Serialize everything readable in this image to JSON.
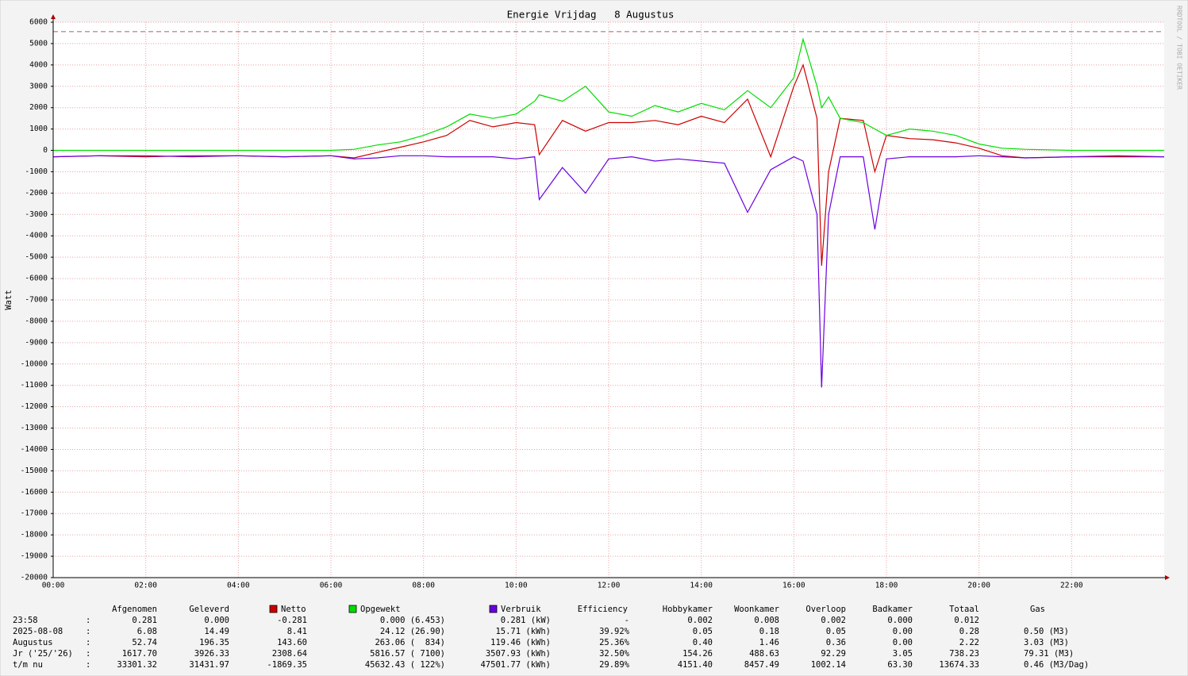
{
  "chart_data": {
    "type": "line",
    "title": "Energie Vrijdag   8 Augustus",
    "ylabel": "Watt",
    "watermark": "RRDTOOL / TOBI OETIKER",
    "x": [
      0,
      1,
      2,
      3,
      4,
      5,
      6,
      6.5,
      7,
      7.5,
      8,
      8.5,
      9,
      9.5,
      10,
      10.4,
      10.5,
      11,
      11.5,
      12,
      12.5,
      13,
      13.5,
      14,
      14.5,
      15,
      15.5,
      16,
      16.2,
      16.5,
      16.6,
      16.75,
      17,
      17.5,
      17.75,
      18,
      18.5,
      19,
      19.5,
      20,
      20.5,
      21,
      22,
      23,
      24
    ],
    "series": [
      {
        "name": "Netto",
        "color": "#cc0000",
        "values": [
          -300,
          -250,
          -300,
          -250,
          -250,
          -300,
          -250,
          -350,
          -100,
          150,
          400,
          700,
          1400,
          1100,
          1300,
          1200,
          -200,
          1400,
          900,
          1300,
          1300,
          1400,
          1200,
          1600,
          1300,
          2400,
          -300,
          3000,
          4000,
          1500,
          -5400,
          -1000,
          1500,
          1400,
          -1000,
          700,
          550,
          500,
          350,
          100,
          -250,
          -350,
          -300,
          -300,
          -300
        ]
      },
      {
        "name": "Opgewekt",
        "color": "#00dd00",
        "values": [
          0,
          0,
          0,
          0,
          0,
          0,
          0,
          50,
          250,
          400,
          700,
          1100,
          1700,
          1500,
          1700,
          2300,
          2600,
          2300,
          3000,
          1800,
          1600,
          2100,
          1800,
          2200,
          1900,
          2800,
          2000,
          3400,
          5200,
          3000,
          2000,
          2500,
          1500,
          1300,
          1000,
          700,
          1000,
          900,
          700,
          300,
          100,
          50,
          0,
          0,
          0
        ]
      },
      {
        "name": "Verbruik",
        "color": "#6a00e0",
        "values": [
          -300,
          -250,
          -250,
          -300,
          -250,
          -300,
          -250,
          -400,
          -350,
          -250,
          -250,
          -300,
          -300,
          -300,
          -400,
          -300,
          -2300,
          -800,
          -2000,
          -400,
          -300,
          -500,
          -400,
          -500,
          -600,
          -2900,
          -900,
          -300,
          -500,
          -3000,
          -11100,
          -3000,
          -300,
          -300,
          -3700,
          -400,
          -300,
          -300,
          -300,
          -250,
          -300,
          -350,
          -300,
          -250,
          -300
        ]
      }
    ],
    "max_line": 5560,
    "xlim": [
      0,
      24
    ],
    "xticks": [
      {
        "value": 0,
        "label": "00:00"
      },
      {
        "value": 2,
        "label": "02:00"
      },
      {
        "value": 4,
        "label": "04:00"
      },
      {
        "value": 6,
        "label": "06:00"
      },
      {
        "value": 8,
        "label": "08:00"
      },
      {
        "value": 10,
        "label": "10:00"
      },
      {
        "value": 12,
        "label": "12:00"
      },
      {
        "value": 14,
        "label": "14:00"
      },
      {
        "value": 16,
        "label": "16:00"
      },
      {
        "value": 18,
        "label": "18:00"
      },
      {
        "value": 20,
        "label": "20:00"
      },
      {
        "value": 22,
        "label": "22:00"
      }
    ],
    "ylim": [
      -20000,
      6000
    ],
    "yticks": [
      6000,
      5000,
      4000,
      3000,
      2000,
      1000,
      0,
      -1000,
      -2000,
      -3000,
      -4000,
      -5000,
      -6000,
      -7000,
      -8000,
      -9000,
      -10000,
      -11000,
      -12000,
      -13000,
      -14000,
      -15000,
      -16000,
      -17000,
      -18000,
      -19000,
      -20000
    ],
    "grid": true
  },
  "table": {
    "separator": ":",
    "headers": [
      "Afgenomen",
      "Geleverd",
      "Netto",
      "Opgewekt",
      "Verbruik",
      "Efficiency",
      "Hobbykamer",
      "Woonkamer",
      "Overloop",
      "Badkamer",
      "Totaal",
      "Gas"
    ],
    "rows": [
      {
        "label": "23:58",
        "cells": [
          "0.281",
          "0.000",
          "-0.281",
          "0.000 (6.453)",
          "0.281 (kW)",
          "-",
          "0.002",
          "0.008",
          "0.002",
          "0.000",
          "0.012"
        ]
      },
      {
        "label": "2025-08-08",
        "cells": [
          "6.08",
          "14.49",
          "8.41",
          "24.12 (26.90)",
          "15.71 (kWh)",
          "39.92%",
          "0.05",
          "0.18",
          "0.05",
          "0.00",
          "0.28",
          "0.50 (M3)"
        ]
      },
      {
        "label": "Augustus",
        "cells": [
          "52.74",
          "196.35",
          "143.60",
          "263.06 (  834)",
          "119.46 (kWh)",
          "25.36%",
          "0.40",
          "1.46",
          "0.36",
          "0.00",
          "2.22",
          "3.03 (M3)"
        ]
      },
      {
        "label": "Jr ('25/'26)",
        "cells": [
          "1617.70",
          "3926.33",
          "2308.64",
          "5816.57 ( 7100)",
          "3507.93 (kWh)",
          "32.50%",
          "154.26",
          "488.63",
          "92.29",
          "3.05",
          "738.23",
          "79.31 (M3)"
        ]
      },
      {
        "label": "t/m nu",
        "cells": [
          "33301.32",
          "31431.97",
          "-1869.35",
          "45632.43 ( 122%)",
          "47501.77 (kWh)",
          "29.89%",
          "4151.40",
          "8457.49",
          "1002.14",
          "63.30",
          "13674.33",
          "0.46 (M3/Dag)"
        ]
      }
    ]
  }
}
